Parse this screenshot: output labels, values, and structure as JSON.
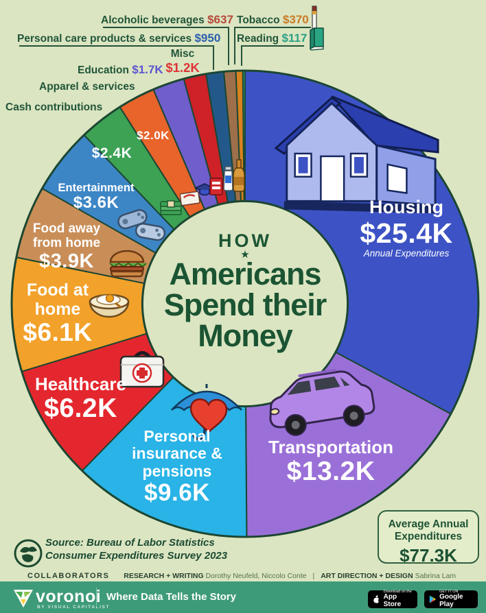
{
  "title": {
    "kicker": "HOW",
    "star": "★",
    "line1": "Americans",
    "line2": "Spend their",
    "line3": "Money"
  },
  "chart_data": {
    "type": "pie",
    "title": "How Americans Spend their Money",
    "subtitle": "Annual Expenditures",
    "inner_radius_ratio": 0.44,
    "start_angle_deg": 0,
    "direction": "clockwise",
    "total_display": "$77.3K",
    "segments": [
      {
        "label": "Housing",
        "value": 25400,
        "display": "$25.4K",
        "color": "#3d53c5",
        "sub": "Annual Expenditures"
      },
      {
        "label": "Transportation",
        "value": 13200,
        "display": "$13.2K",
        "color": "#9a70d8"
      },
      {
        "label": "Personal insurance & pensions",
        "value": 9600,
        "display": "$9.6K",
        "color": "#29b3e6"
      },
      {
        "label": "Healthcare",
        "value": 6200,
        "display": "$6.2K",
        "color": "#e4272e"
      },
      {
        "label": "Food at home",
        "value": 6100,
        "display": "$6.1K",
        "color": "#f2a12a"
      },
      {
        "label": "Food away from home",
        "value": 3900,
        "display": "$3.9K",
        "color": "#c98e58"
      },
      {
        "label": "Entertainment",
        "value": 3600,
        "display": "$3.6K",
        "color": "#3d86c6"
      },
      {
        "label": "Cash contributions",
        "value": 2400,
        "display": "$2.4K",
        "color": "#3da254"
      },
      {
        "label": "Apparel & services",
        "value": 2000,
        "display": "$2.0K",
        "color": "#e8642b"
      },
      {
        "label": "Education",
        "value": 1700,
        "display": "$1.7K",
        "color": "#6f5ecb",
        "value_color": "#5c55d0"
      },
      {
        "label": "Misc",
        "value": 1200,
        "display": "$1.2K",
        "color": "#cf2128",
        "value_color": "#de3236"
      },
      {
        "label": "Personal care products & services",
        "value": 950,
        "display": "$950",
        "color": "#23598a",
        "value_color": "#2b5fad"
      },
      {
        "label": "Alcoholic beverages",
        "value": 637,
        "display": "$637",
        "color": "#9e6f4b",
        "value_color": "#b5483b"
      },
      {
        "label": "Tobacco",
        "value": 370,
        "display": "$370",
        "color": "#d8821f",
        "value_color": "#c97a26"
      },
      {
        "label": "Reading",
        "value": 117,
        "display": "$117",
        "color": "#2aa584",
        "value_color": "#2aa183"
      }
    ],
    "outline_color": "#1c4631",
    "background_color": "#dbe5c1"
  },
  "icons": {
    "housing": "house-icon",
    "transportation": "suv-icon",
    "personal_insurance": "umbrella-heart-icon",
    "healthcare": "first-aid-kit-icon",
    "food_at_home": "egg-bowl-icon",
    "food_away": "burger-icon",
    "entertainment": "game-controllers-icon",
    "cash_contributions": "money-stack-icon",
    "apparel": "clothing-card-icon",
    "education": "graduation-cap-icon",
    "misc": "cards-icon",
    "personal_care": "lotion-tube-icon",
    "alcoholic_beverages": "beer-bottle-icon",
    "tobacco": "cigarette-icon",
    "reading": "book-icon"
  },
  "summary_box": {
    "line1": "Average Annual",
    "line2": "Expenditures",
    "value": "$77.3K"
  },
  "source": {
    "line1": "Source: Bureau of Labor Statistics",
    "line2": "Consumer Expenditures Survey 2023"
  },
  "collaborators": {
    "heading": "COLLABORATORS",
    "research_label": "RESEARCH + WRITING",
    "research_names": "Dorothy Neufeld, Niccolo Conte",
    "divider": "|",
    "design_label": "ART DIRECTION + DESIGN",
    "design_names": "Sabrina Lam"
  },
  "footer": {
    "brand": "voronoi",
    "brand_sub": "BY VISUAL CAPITALIST",
    "tagline": "Where Data Tells the Story",
    "appstore_top": "Download on the",
    "appstore_bottom": "App Store",
    "googleplay_top": "GET IT ON",
    "googleplay_bottom": "Google Play"
  }
}
